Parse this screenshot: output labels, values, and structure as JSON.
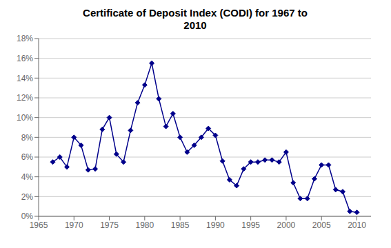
{
  "chart_data": {
    "type": "line",
    "title": "Certificate of Deposit Index (CODI) for 1967 to\n2010",
    "x": [
      1967,
      1968,
      1969,
      1970,
      1971,
      1972,
      1973,
      1974,
      1975,
      1976,
      1977,
      1978,
      1979,
      1980,
      1981,
      1982,
      1983,
      1984,
      1985,
      1986,
      1987,
      1988,
      1989,
      1990,
      1991,
      1992,
      1993,
      1994,
      1995,
      1996,
      1997,
      1998,
      1999,
      2000,
      2001,
      2002,
      2003,
      2004,
      2005,
      2006,
      2007,
      2008,
      2009,
      2010
    ],
    "values": [
      0.055,
      0.06,
      0.05,
      0.08,
      0.072,
      0.047,
      0.048,
      0.088,
      0.1,
      0.063,
      0.055,
      0.087,
      0.115,
      0.133,
      0.155,
      0.119,
      0.091,
      0.104,
      0.08,
      0.065,
      0.072,
      0.08,
      0.089,
      0.082,
      0.056,
      0.037,
      0.031,
      0.048,
      0.055,
      0.055,
      0.057,
      0.057,
      0.055,
      0.065,
      0.034,
      0.018,
      0.018,
      0.038,
      0.052,
      0.052,
      0.027,
      0.025,
      0.005,
      0.004
    ],
    "color": "#00008B",
    "marker": "diamond",
    "xlim": [
      1965,
      2012
    ],
    "xticks": [
      1965,
      1970,
      1975,
      1980,
      1985,
      1990,
      1995,
      2000,
      2005,
      2010
    ],
    "ylim": [
      0,
      0.18
    ],
    "yticks": [
      {
        "value": 0,
        "label": "0%"
      },
      {
        "value": 0.02,
        "label": "2%"
      },
      {
        "value": 0.04,
        "label": "4%"
      },
      {
        "value": 0.06,
        "label": "6%"
      },
      {
        "value": 0.08,
        "label": "8%"
      },
      {
        "value": 0.1,
        "label": "10%"
      },
      {
        "value": 0.12,
        "label": "12%"
      },
      {
        "value": 0.14,
        "label": "14%"
      },
      {
        "value": 0.16,
        "label": "16%"
      },
      {
        "value": 0.18,
        "label": "18%"
      }
    ],
    "grid": true
  }
}
